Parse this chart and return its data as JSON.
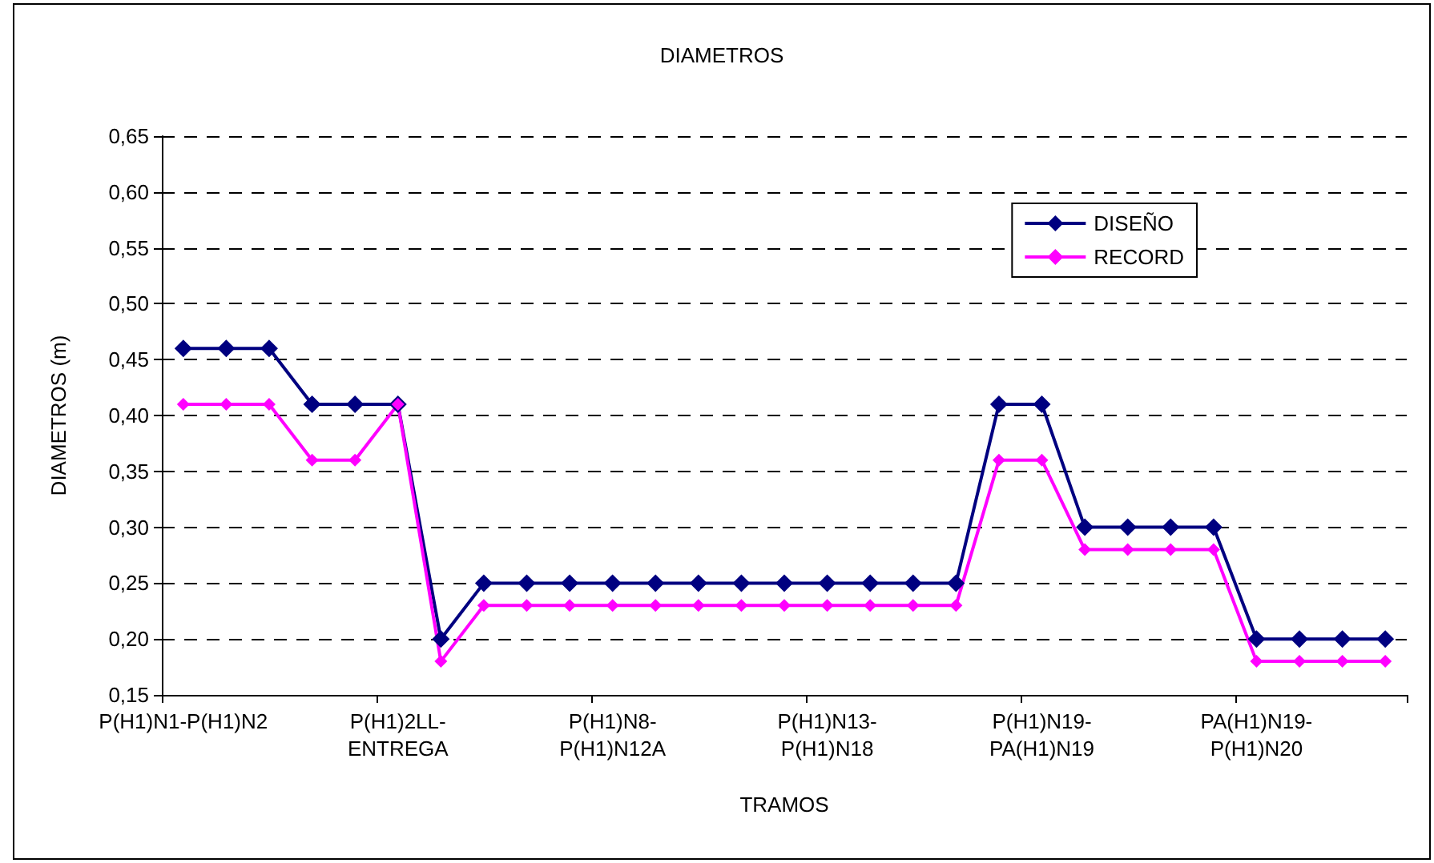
{
  "chart_data": {
    "type": "line",
    "title": "DIAMETROS",
    "xlabel": "TRAMOS",
    "ylabel": "DIAMETROS (m)",
    "categories": [
      "P(H1)N1-P(H1)N2",
      null,
      null,
      null,
      null,
      "P(H1)2LL-\nENTREGA",
      null,
      null,
      null,
      null,
      "P(H1)N8-\nP(H1)N12A",
      null,
      null,
      null,
      null,
      "P(H1)N13-\nP(H1)N18",
      null,
      null,
      null,
      null,
      "P(H1)N19-\nPA(H1)N19",
      null,
      null,
      null,
      null,
      "PA(H1)N19-\nP(H1)N20",
      null,
      null,
      null
    ],
    "series": [
      {
        "name": "DISEÑO",
        "color": "#000080",
        "values": [
          0.46,
          0.46,
          0.46,
          0.41,
          0.41,
          0.41,
          0.2,
          0.25,
          0.25,
          0.25,
          0.25,
          0.25,
          0.25,
          0.25,
          0.25,
          0.25,
          0.25,
          0.25,
          0.25,
          0.41,
          0.41,
          0.3,
          0.3,
          0.3,
          0.3,
          0.2,
          0.2,
          0.2,
          0.2
        ]
      },
      {
        "name": "RECORD",
        "color": "#ff00ff",
        "values": [
          0.41,
          0.41,
          0.41,
          0.36,
          0.36,
          0.41,
          0.18,
          0.23,
          0.23,
          0.23,
          0.23,
          0.23,
          0.23,
          0.23,
          0.23,
          0.23,
          0.23,
          0.23,
          0.23,
          0.36,
          0.36,
          0.28,
          0.28,
          0.28,
          0.28,
          0.18,
          0.18,
          0.18,
          0.18
        ]
      }
    ],
    "ylim": [
      0.15,
      0.65
    ],
    "yticks": [
      {
        "value": 0.15,
        "label": "0,15"
      },
      {
        "value": 0.2,
        "label": "0,20"
      },
      {
        "value": 0.25,
        "label": "0,25"
      },
      {
        "value": 0.3,
        "label": "0,30"
      },
      {
        "value": 0.35,
        "label": "0,35"
      },
      {
        "value": 0.4,
        "label": "0,40"
      },
      {
        "value": 0.45,
        "label": "0,45"
      },
      {
        "value": 0.5,
        "label": "0,50"
      },
      {
        "value": 0.55,
        "label": "0,55"
      },
      {
        "value": 0.6,
        "label": "0,60"
      },
      {
        "value": 0.65,
        "label": "0,65"
      }
    ],
    "grid": "y",
    "legend": "top right",
    "marker": "diamond",
    "line_style": "solid"
  }
}
